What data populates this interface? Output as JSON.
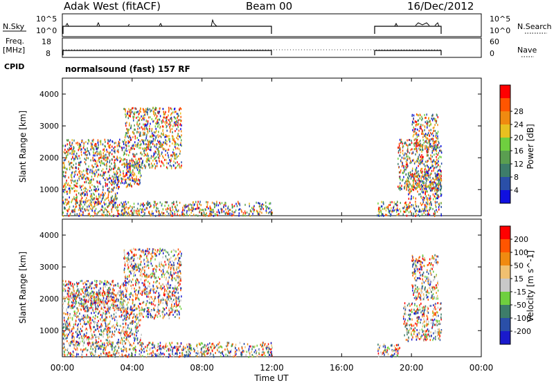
{
  "header": {
    "station": "Adak West (fitACF)",
    "beam": "Beam 00",
    "date": "16/Dec/2012"
  },
  "strip_panels": {
    "nsky_label": "N.Sky",
    "nsky_ticks": [
      "10^5",
      "10^0"
    ],
    "nsearch_label": "N.Search",
    "nsearch_ticks": [
      "10^5",
      "10^0"
    ],
    "freq_label_1": "Freq.",
    "freq_label_2": "[MHz]",
    "freq_ticks": [
      "18",
      "8"
    ],
    "nave_label": "Nave",
    "nave_ticks": [
      "60",
      "0"
    ],
    "cpid_label": "CPID",
    "cpid_text": "normalsound (fast) 157 RF",
    "data_intervals_ut": [
      [
        0,
        12
      ],
      [
        18,
        21.75
      ]
    ]
  },
  "chart_data": [
    {
      "type": "heatmap",
      "name": "Power",
      "xlabel": "",
      "ylabel": "Slant Range [km]",
      "xlim": [
        0,
        24
      ],
      "ylim": [
        180,
        4500
      ],
      "y_ticks": [
        "1000",
        "2000",
        "3000",
        "4000"
      ],
      "colorbar": {
        "label": "Power [dB]",
        "ticks": [
          "4",
          "8",
          "12",
          "16",
          "20",
          "24",
          "28"
        ],
        "colors": [
          "#1010e0",
          "#2a4fa8",
          "#3d7d6a",
          "#5a9e50",
          "#6fcf3f",
          "#e8c020",
          "#f08a10",
          "#ff5500",
          "#ff0000"
        ]
      },
      "echo_regions": [
        {
          "t": [
            0.0,
            3.2
          ],
          "r": [
            600,
            1100
          ],
          "level": "24-28"
        },
        {
          "t": [
            0.0,
            4.5
          ],
          "r": [
            1100,
            1900
          ],
          "level": "16-24"
        },
        {
          "t": [
            0.0,
            3.5
          ],
          "r": [
            1900,
            2600
          ],
          "level": "12-20"
        },
        {
          "t": [
            3.5,
            6.8
          ],
          "r": [
            1700,
            3600
          ],
          "level": "4-16"
        },
        {
          "t": [
            0.0,
            12.0
          ],
          "r": [
            200,
            650
          ],
          "level": "4-28"
        },
        {
          "t": [
            18.0,
            21.7
          ],
          "r": [
            200,
            650
          ],
          "level": "4-20"
        },
        {
          "t": [
            19.8,
            21.7
          ],
          "r": [
            700,
            1600
          ],
          "level": "20-28"
        },
        {
          "t": [
            19.2,
            21.7
          ],
          "r": [
            1000,
            2600
          ],
          "level": "8-20"
        },
        {
          "t": [
            20.0,
            21.5
          ],
          "r": [
            2300,
            3400
          ],
          "level": "4-16"
        }
      ]
    },
    {
      "type": "heatmap",
      "name": "Velocity",
      "xlabel": "Time UT",
      "ylabel": "Slant Range [km]",
      "xlim": [
        0,
        24
      ],
      "ylim": [
        180,
        4500
      ],
      "x_ticks": [
        "00:00",
        "04:00",
        "08:00",
        "12:00",
        "16:00",
        "20:00",
        "00:00"
      ],
      "y_ticks": [
        "1000",
        "2000",
        "3000",
        "4000"
      ],
      "colorbar": {
        "label": "Velocity [m s^-1]",
        "ticks": [
          "200",
          "100",
          "50",
          "15",
          "-15",
          "-50",
          "-100",
          "-200"
        ],
        "colors": [
          "#1a1acc",
          "#2a4fa8",
          "#3d7d6a",
          "#6fcf3f",
          "#c8c8c8",
          "#f0c070",
          "#f08a10",
          "#ff5500",
          "#ff0000"
        ]
      },
      "echo_regions": [
        {
          "t": [
            0.0,
            4.5
          ],
          "r": [
            600,
            1400
          ],
          "level": "-15..15"
        },
        {
          "t": [
            0.0,
            6.8
          ],
          "r": [
            1400,
            2600
          ],
          "level": "-15..15"
        },
        {
          "t": [
            0.5,
            3.5
          ],
          "r": [
            1700,
            2300
          ],
          "level": "15..50"
        },
        {
          "t": [
            3.5,
            6.8
          ],
          "r": [
            2600,
            3600
          ],
          "level": "-15..15"
        },
        {
          "t": [
            0.0,
            12.0
          ],
          "r": [
            200,
            650
          ],
          "level": "-50..50"
        },
        {
          "t": [
            18.0,
            19.3
          ],
          "r": [
            200,
            600
          ],
          "level": "-100..-50"
        },
        {
          "t": [
            19.5,
            21.7
          ],
          "r": [
            700,
            1900
          ],
          "level": "-15..50"
        },
        {
          "t": [
            20.0,
            21.5
          ],
          "r": [
            2000,
            3400
          ],
          "level": "15..50"
        }
      ]
    }
  ]
}
